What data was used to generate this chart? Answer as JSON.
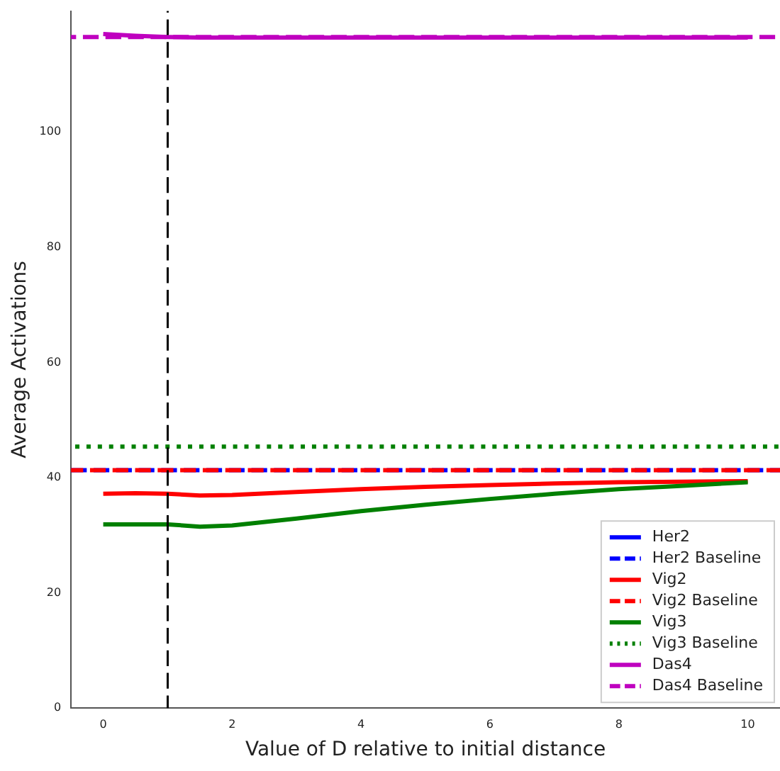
{
  "chart_data": {
    "type": "line",
    "xlabel": "Value of D relative to initial distance",
    "ylabel": "Average Activations",
    "x": [
      0,
      0.5,
      1,
      1.5,
      2,
      3,
      4,
      5,
      6,
      7,
      8,
      9,
      10
    ],
    "xlim": [
      -0.5,
      10.5
    ],
    "xticks": [
      0,
      2,
      4,
      6,
      8,
      10
    ],
    "ylim": [
      0,
      121
    ],
    "yticks": [
      0,
      20,
      40,
      60,
      80,
      100
    ],
    "grid": false,
    "legend": "bottom right",
    "marker": "none",
    "series": [
      {
        "name": "Her2",
        "color": "#0000ff",
        "line_style": "solid",
        "values": [
          null,
          null,
          null,
          null,
          null,
          null,
          null,
          null,
          null,
          null,
          null,
          null,
          null
        ]
      },
      {
        "name": "Vig2",
        "color": "#ff0000",
        "line_style": "solid",
        "values": [
          37.2,
          37.3,
          37.2,
          36.9,
          37.0,
          37.5,
          38.0,
          38.4,
          38.7,
          39.0,
          39.2,
          39.3,
          39.4
        ]
      },
      {
        "name": "Vig3",
        "color": "#008000",
        "line_style": "solid",
        "values": [
          31.9,
          31.9,
          31.9,
          31.5,
          31.7,
          32.9,
          34.2,
          35.3,
          36.3,
          37.2,
          38.0,
          38.6,
          39.2
        ]
      },
      {
        "name": "Das4",
        "color": "#bf00bf",
        "line_style": "solid",
        "values": [
          117,
          116.7,
          116.5,
          116.4,
          116.4,
          116.4,
          116.4,
          116.4,
          116.4,
          116.4,
          116.4,
          116.4,
          116.4
        ]
      }
    ],
    "ref_lines": [
      {
        "axis": "y",
        "value": 41.3,
        "label": "Her2 Baseline",
        "color": "#0000ff",
        "line_style": "dashed"
      },
      {
        "axis": "y",
        "value": 41.3,
        "label": "Vig2 Baseline",
        "color": "#ff0000",
        "line_style": "dashed"
      },
      {
        "axis": "y",
        "value": 45.4,
        "label": "Vig3 Baseline",
        "color": "#008000",
        "line_style": "dotted"
      },
      {
        "axis": "y",
        "value": 116.5,
        "label": "Das4 Baseline",
        "color": "#bf00bf",
        "line_style": "dashed"
      },
      {
        "axis": "x",
        "value": 1,
        "color": "#000000",
        "line_style": "dashed"
      }
    ]
  }
}
